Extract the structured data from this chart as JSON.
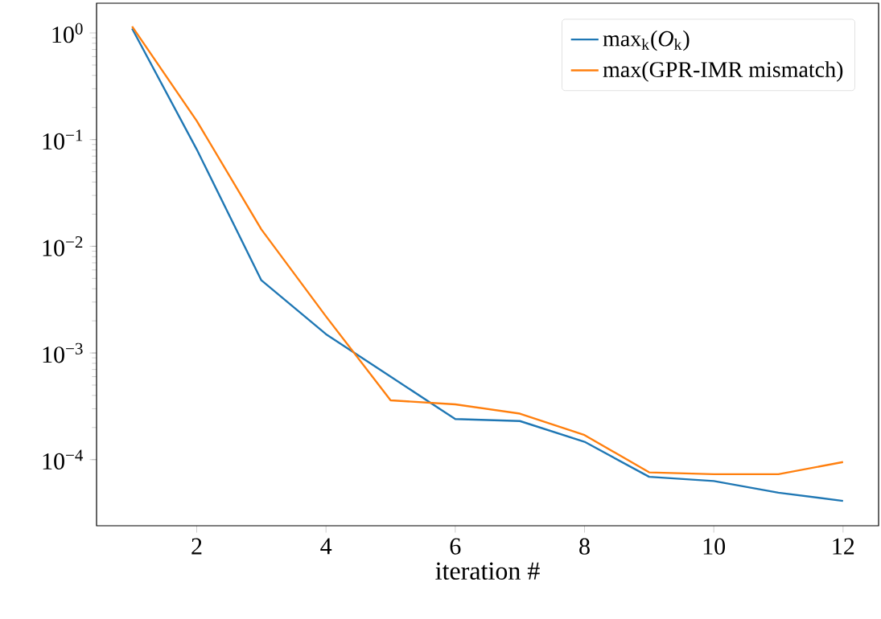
{
  "chart_data": {
    "type": "line",
    "xlabel": "iteration #",
    "x": [
      1,
      2,
      3,
      4,
      5,
      6,
      7,
      8,
      9,
      10,
      11,
      12
    ],
    "series": [
      {
        "name": "max$_{k}$(*O*$_{k}$)",
        "color": "#1f77b4",
        "values": [
          1.1,
          0.081,
          0.0048,
          0.0015,
          0.0006,
          0.00024,
          0.00023,
          0.000147,
          6.9e-05,
          6.3e-05,
          4.9e-05,
          4.1e-05
        ]
      },
      {
        "name": "max(GPR-IMR mismatch)",
        "color": "#ff7f0e",
        "values": [
          1.15,
          0.15,
          0.0144,
          0.0022,
          0.00036,
          0.00033,
          0.00027,
          0.00017,
          7.6e-05,
          7.3e-05,
          7.3e-05,
          9.5e-05
        ]
      }
    ],
    "log": "y",
    "xlim": [
      0.45,
      12.55
    ],
    "ylim": [
      2.4e-05,
      1.9
    ],
    "xticks": [
      2,
      4,
      6,
      8,
      10,
      12
    ],
    "yticks": [
      {
        "value": 0.0001,
        "label": "10$^{−4}$"
      },
      {
        "value": 0.001,
        "label": "10$^{−3}$"
      },
      {
        "value": 0.01,
        "label": "10$^{−2}$"
      },
      {
        "value": 0.1,
        "label": "10$^{−1}$"
      },
      {
        "value": 1,
        "label": "10$^{0}$"
      }
    ],
    "legend": "top right",
    "grid": false,
    "marker": "none",
    "line_style": "solid"
  }
}
